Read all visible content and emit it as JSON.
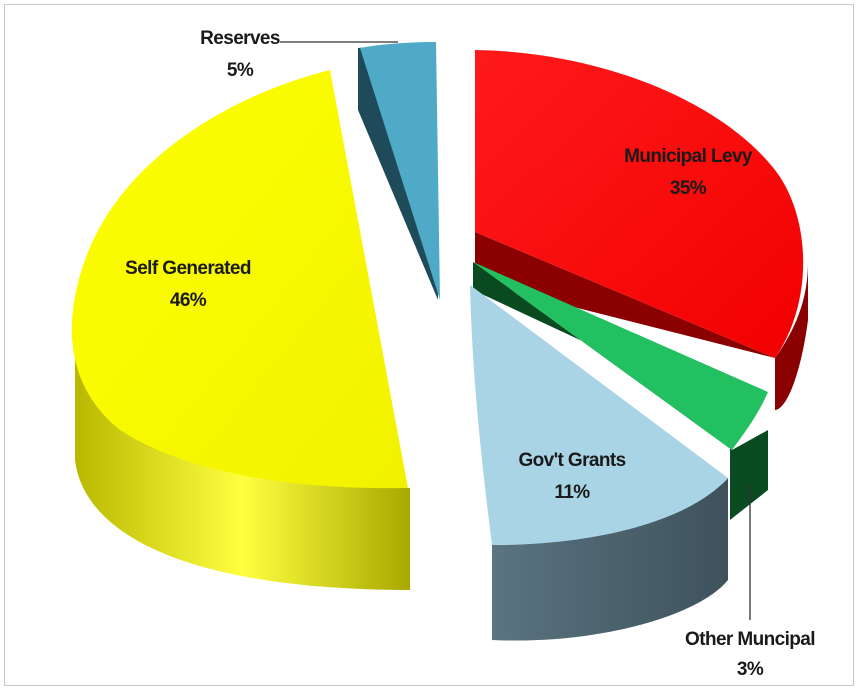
{
  "chart_data": {
    "type": "pie",
    "title": "",
    "slices": [
      {
        "label": "Municipal Levy",
        "value_label": "35%",
        "value": 35,
        "color": "#ff0000",
        "side_color": "#8b0000",
        "text_color": "#2a1a1a"
      },
      {
        "label": "Other Muncipal",
        "value_label": "3%",
        "value": 3,
        "color": "#22c060",
        "side_color": "#0a4a20",
        "text_color": "#1a1a1a"
      },
      {
        "label": "Gov't Grants",
        "value_label": "11%",
        "value": 11,
        "color": "#a8d4e6",
        "side_color": "#4f6570",
        "text_color": "#1a1a1a"
      },
      {
        "label": "Self Generated",
        "value_label": "46%",
        "value": 46,
        "color": "#ffff00",
        "side_color": "#c8c800",
        "text_color": "#1a1a1a"
      },
      {
        "label": "Reserves",
        "value_label": "5%",
        "value": 5,
        "color": "#4faac8",
        "side_color": "#1e4a5a",
        "text_color": "#1a1a1a"
      }
    ],
    "style": "3d-exploded"
  }
}
